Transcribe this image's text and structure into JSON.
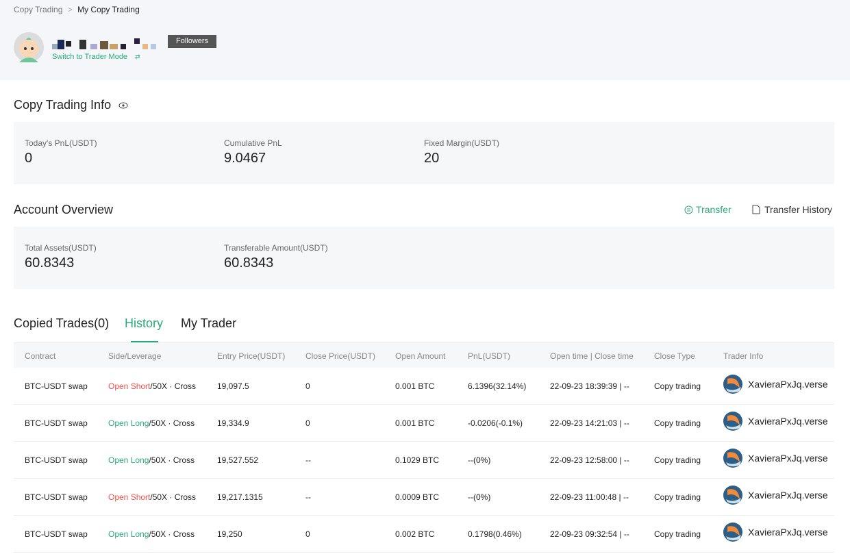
{
  "breadcrumb": [
    "Copy Trading",
    "My Copy Trading"
  ],
  "profile": {
    "badge": "Followers",
    "switch": "Switch to Trader Mode"
  },
  "info": {
    "title": "Copy Trading Info",
    "stats": [
      {
        "label": "Today's PnL(USDT)",
        "value": "0"
      },
      {
        "label": "Cumulative PnL",
        "value": "9.0467"
      },
      {
        "label": "Fixed Margin(USDT)",
        "value": "20"
      }
    ]
  },
  "overview": {
    "title": "Account Overview",
    "actions": [
      "Transfer",
      "Transfer History"
    ],
    "stats": [
      {
        "label": "Total Assets(USDT)",
        "value": "60.8343"
      },
      {
        "label": "Transferable Amount(USDT)",
        "value": "60.8343"
      }
    ]
  },
  "tabs": [
    "Copied Trades(0)",
    "History",
    "My Trader"
  ],
  "table": {
    "headers": [
      "Contract",
      "Side/Leverage",
      "Entry Price(USDT)",
      "Close Price(USDT)",
      "Open Amount",
      "PnL(USDT)",
      "Open time | Close time",
      "Close Type",
      "Trader Info"
    ],
    "rows": [
      {
        "contract": "BTC-USDT swap",
        "side": "Open Short",
        "side_color": "#f0524a",
        "leverage": "/50X · Cross",
        "entry": "19,097.5",
        "close": "0",
        "amount": "0.001 BTC",
        "pnl": "6.1396(32.14%)",
        "time": "22-09-23 18:39:39 | --",
        "type": "Copy trading",
        "trader": "XavieraPxJq.verse"
      },
      {
        "contract": "BTC-USDT swap",
        "side": "Open Long",
        "side_color": "#2aa87a",
        "leverage": "/50X · Cross",
        "entry": "19,334.9",
        "close": "0",
        "amount": "0.001 BTC",
        "pnl": "-0.0206(-0.1%)",
        "time": "22-09-23 14:21:03 | --",
        "type": "Copy trading",
        "trader": "XavieraPxJq.verse"
      },
      {
        "contract": "BTC-USDT swap",
        "side": "Open Long",
        "side_color": "#2aa87a",
        "leverage": "/50X · Cross",
        "entry": "19,527.552",
        "close": "--",
        "amount": "0.1029 BTC",
        "pnl": "--(0%)",
        "time": "22-09-23 12:58:00 | --",
        "type": "Copy trading",
        "trader": "XavieraPxJq.verse"
      },
      {
        "contract": "BTC-USDT swap",
        "side": "Open Short",
        "side_color": "#f0524a",
        "leverage": "/50X · Cross",
        "entry": "19,217.1315",
        "close": "--",
        "amount": "0.0009 BTC",
        "pnl": "--(0%)",
        "time": "22-09-23 11:00:48 | --",
        "type": "Copy trading",
        "trader": "XavieraPxJq.verse"
      },
      {
        "contract": "BTC-USDT swap",
        "side": "Open Long",
        "side_color": "#2aa87a",
        "leverage": "/50X · Cross",
        "entry": "19,250",
        "close": "0",
        "amount": "0.002 BTC",
        "pnl": "0.1798(0.46%)",
        "time": "22-09-23 09:32:54 | --",
        "type": "Copy trading",
        "trader": "XavieraPxJq.verse"
      }
    ]
  }
}
